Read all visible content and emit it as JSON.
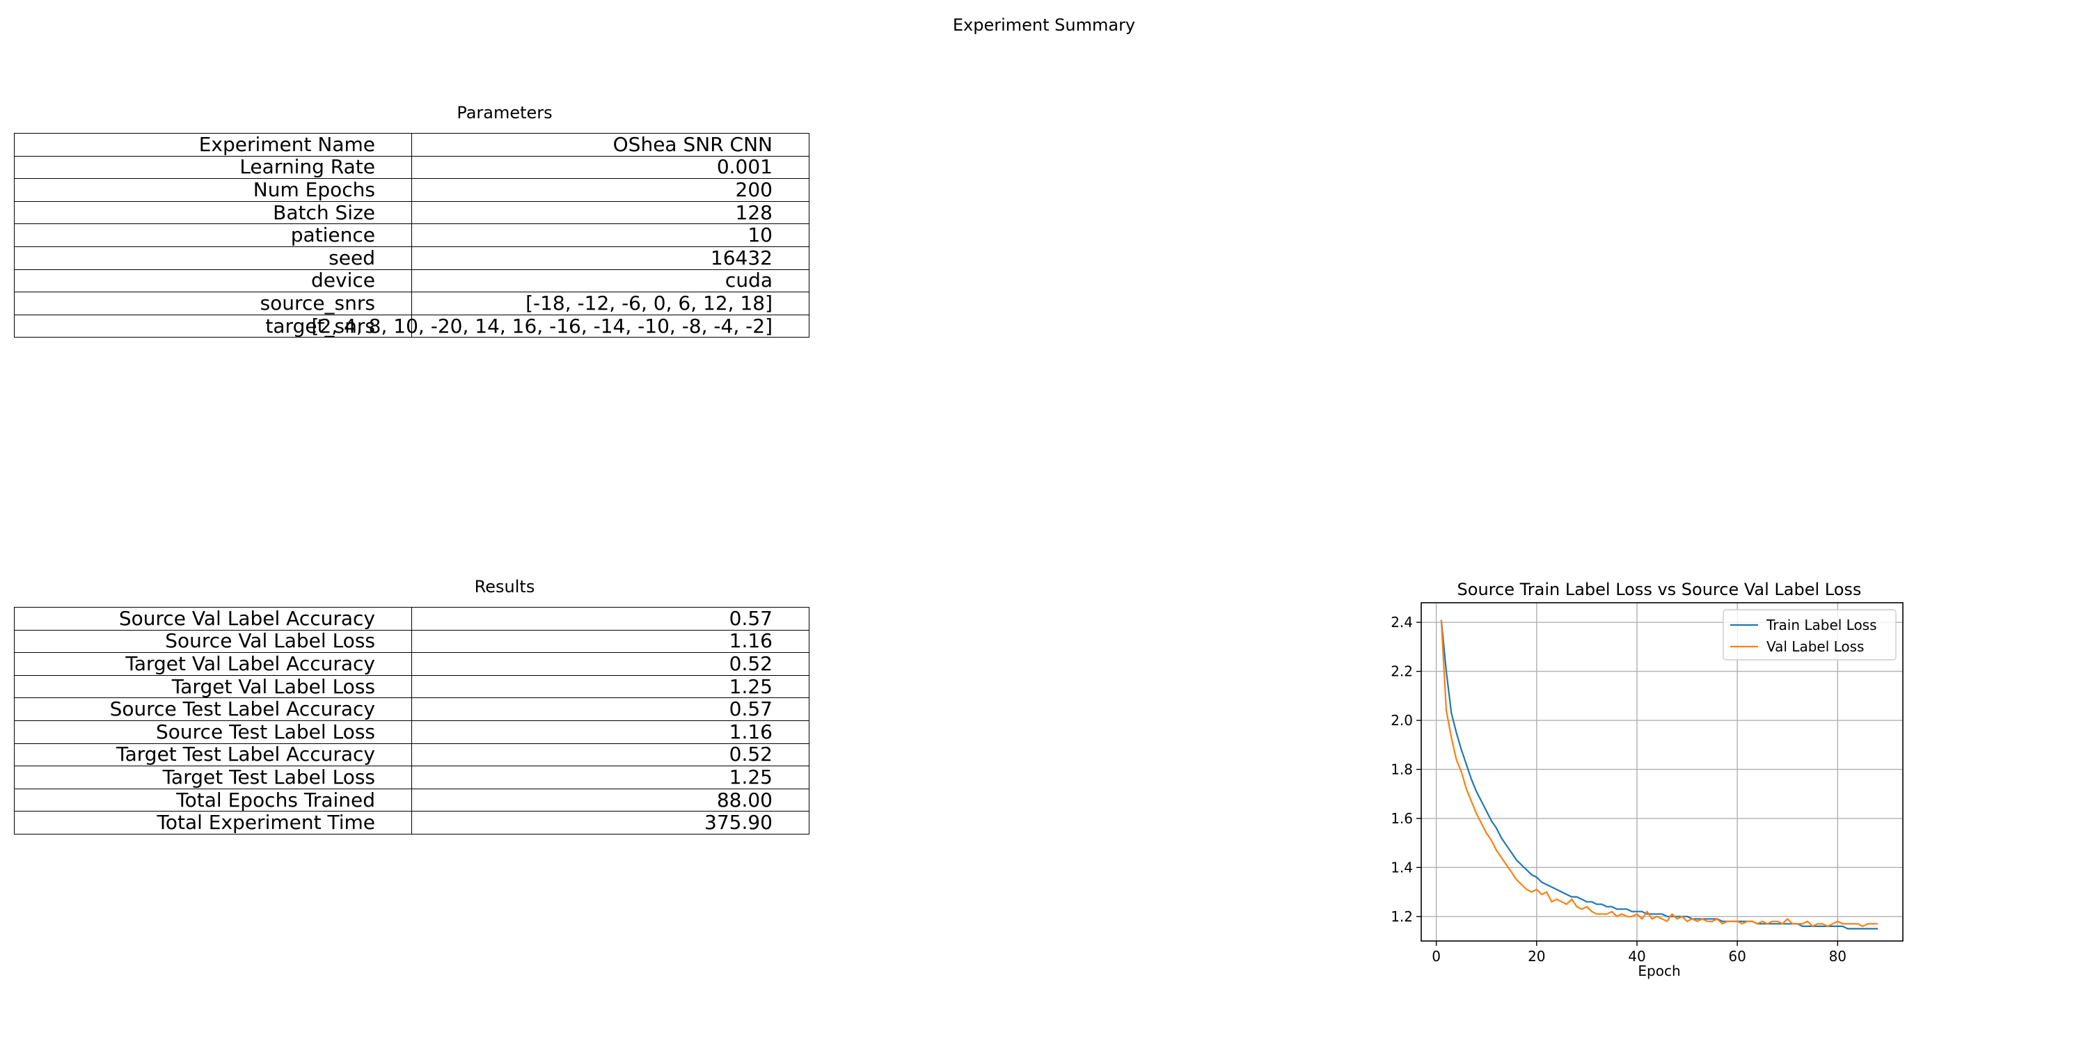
{
  "suptitle": "Experiment Summary",
  "parameters": {
    "title": "Parameters",
    "rows": [
      {
        "key": "Experiment Name",
        "value": "OShea SNR CNN"
      },
      {
        "key": "Learning Rate",
        "value": "0.001"
      },
      {
        "key": "Num Epochs",
        "value": "200"
      },
      {
        "key": "Batch Size",
        "value": "128"
      },
      {
        "key": "patience",
        "value": "10"
      },
      {
        "key": "seed",
        "value": "16432"
      },
      {
        "key": "device",
        "value": "cuda"
      },
      {
        "key": "source_snrs",
        "value": "[-18, -12, -6, 0, 6, 12, 18]"
      },
      {
        "key": "target_snrs",
        "value": "[2, 4, 8, 10, -20, 14, 16, -16, -14, -10, -8, -4, -2]"
      }
    ]
  },
  "results": {
    "title": "Results",
    "rows": [
      {
        "key": "Source Val Label Accuracy",
        "value": "0.57"
      },
      {
        "key": "Source Val Label Loss",
        "value": "1.16"
      },
      {
        "key": "Target Val Label Accuracy",
        "value": "0.52"
      },
      {
        "key": "Target Val Label Loss",
        "value": "1.25"
      },
      {
        "key": "Source Test Label Accuracy",
        "value": "0.57"
      },
      {
        "key": "Source Test Label Loss",
        "value": "1.16"
      },
      {
        "key": "Target Test Label Accuracy",
        "value": "0.52"
      },
      {
        "key": "Target Test Label Loss",
        "value": "1.25"
      },
      {
        "key": "Total Epochs Trained",
        "value": "88.00"
      },
      {
        "key": "Total Experiment Time",
        "value": "375.90"
      }
    ]
  },
  "chart_data": {
    "type": "line",
    "title": "Source Train Label Loss vs Source Val Label Loss",
    "xlabel": "Epoch",
    "ylabel": "",
    "xlim": [
      -3,
      93
    ],
    "ylim": [
      1.1,
      2.48
    ],
    "xticks": [
      0,
      20,
      40,
      60,
      80
    ],
    "yticks": [
      1.2,
      1.4,
      1.6,
      1.8,
      2.0,
      2.2,
      2.4
    ],
    "grid": true,
    "legend_position": "top-right",
    "x": [
      1,
      2,
      3,
      4,
      5,
      6,
      7,
      8,
      9,
      10,
      11,
      12,
      13,
      14,
      15,
      16,
      17,
      18,
      19,
      20,
      21,
      22,
      23,
      24,
      25,
      26,
      27,
      28,
      29,
      30,
      31,
      32,
      33,
      34,
      35,
      36,
      37,
      38,
      39,
      40,
      41,
      42,
      43,
      44,
      45,
      46,
      47,
      48,
      49,
      50,
      51,
      52,
      53,
      54,
      55,
      56,
      57,
      58,
      59,
      60,
      61,
      62,
      63,
      64,
      65,
      66,
      67,
      68,
      69,
      70,
      71,
      72,
      73,
      74,
      75,
      76,
      77,
      78,
      79,
      80,
      81,
      82,
      83,
      84,
      85,
      86,
      87,
      88
    ],
    "series": [
      {
        "name": "Train Label Loss",
        "color": "#1f77b4",
        "values": [
          2.41,
          2.2,
          2.03,
          1.95,
          1.88,
          1.82,
          1.76,
          1.71,
          1.67,
          1.63,
          1.59,
          1.56,
          1.52,
          1.49,
          1.46,
          1.43,
          1.41,
          1.39,
          1.37,
          1.36,
          1.34,
          1.33,
          1.32,
          1.31,
          1.3,
          1.29,
          1.28,
          1.28,
          1.27,
          1.26,
          1.26,
          1.25,
          1.25,
          1.24,
          1.24,
          1.23,
          1.23,
          1.23,
          1.22,
          1.22,
          1.22,
          1.21,
          1.21,
          1.21,
          1.21,
          1.2,
          1.2,
          1.2,
          1.2,
          1.2,
          1.19,
          1.19,
          1.19,
          1.19,
          1.19,
          1.19,
          1.18,
          1.18,
          1.18,
          1.18,
          1.18,
          1.18,
          1.18,
          1.17,
          1.17,
          1.17,
          1.17,
          1.17,
          1.17,
          1.17,
          1.17,
          1.17,
          1.16,
          1.16,
          1.16,
          1.16,
          1.16,
          1.16,
          1.16,
          1.16,
          1.16,
          1.15,
          1.15,
          1.15,
          1.15,
          1.15,
          1.15,
          1.15
        ]
      },
      {
        "name": "Val Label Loss",
        "color": "#ff7f0e",
        "values": [
          2.41,
          2.04,
          1.93,
          1.84,
          1.79,
          1.72,
          1.67,
          1.62,
          1.58,
          1.54,
          1.51,
          1.47,
          1.44,
          1.41,
          1.38,
          1.35,
          1.33,
          1.31,
          1.3,
          1.31,
          1.29,
          1.3,
          1.26,
          1.27,
          1.26,
          1.25,
          1.27,
          1.24,
          1.23,
          1.24,
          1.22,
          1.21,
          1.21,
          1.21,
          1.22,
          1.2,
          1.21,
          1.2,
          1.2,
          1.21,
          1.19,
          1.22,
          1.19,
          1.2,
          1.19,
          1.18,
          1.21,
          1.19,
          1.2,
          1.18,
          1.19,
          1.18,
          1.19,
          1.18,
          1.18,
          1.19,
          1.17,
          1.18,
          1.18,
          1.18,
          1.17,
          1.18,
          1.18,
          1.17,
          1.18,
          1.17,
          1.18,
          1.18,
          1.17,
          1.19,
          1.17,
          1.17,
          1.17,
          1.18,
          1.16,
          1.17,
          1.17,
          1.16,
          1.17,
          1.18,
          1.17,
          1.17,
          1.17,
          1.17,
          1.16,
          1.17,
          1.17,
          1.17
        ]
      }
    ]
  }
}
